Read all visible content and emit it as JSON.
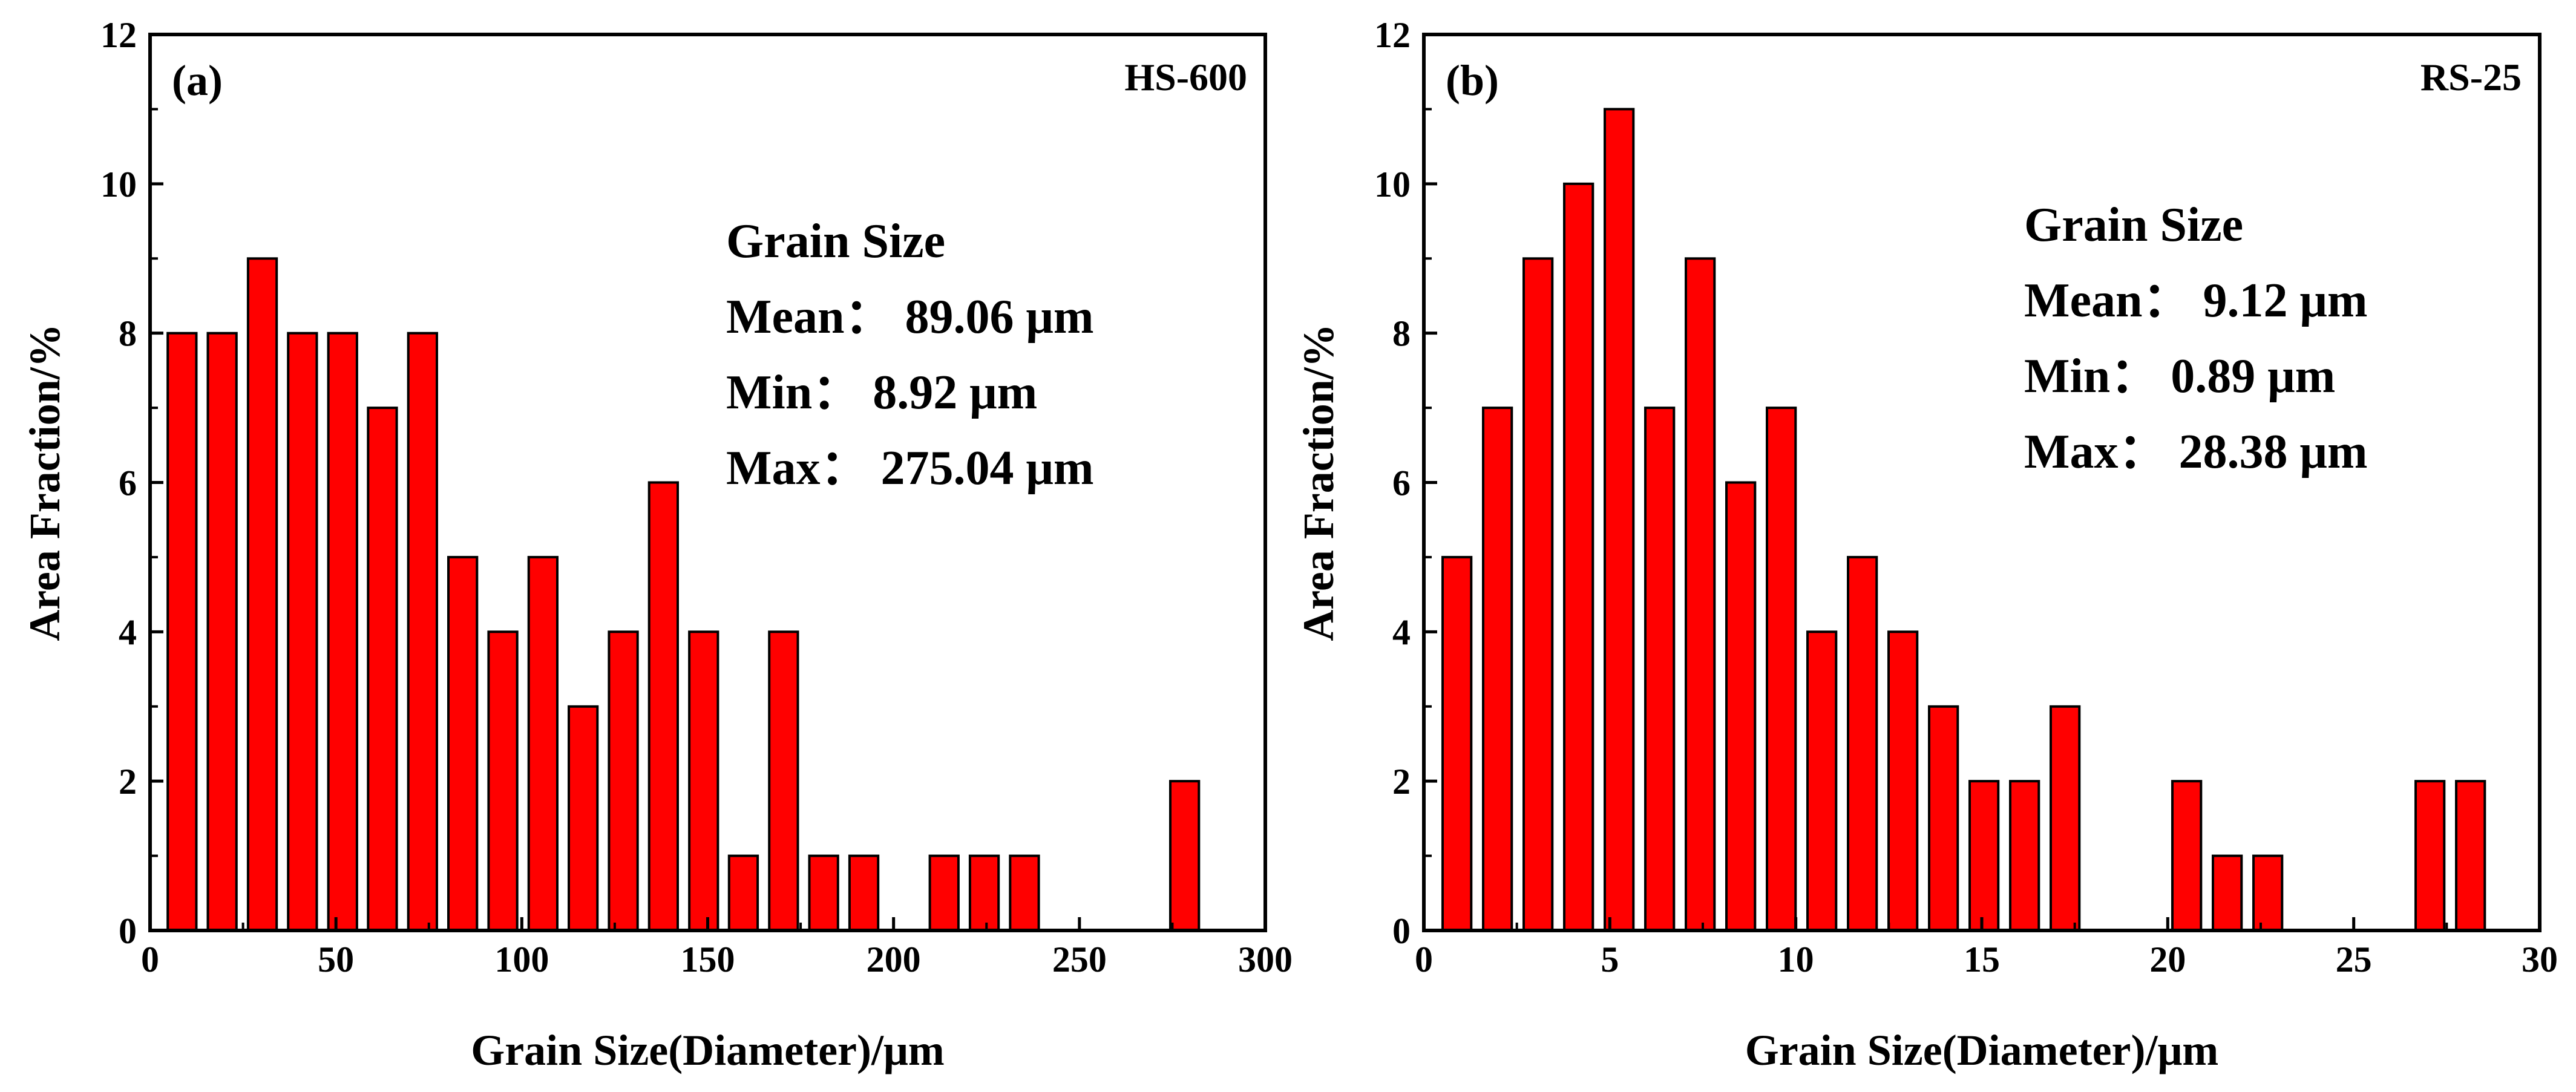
{
  "chart_data": [
    {
      "type": "bar",
      "panel_label": "(a)",
      "sample": "HS-600",
      "xlabel": "Grain Size(Diameter)/μm",
      "ylabel": "Area Fraction/%",
      "xlim": [
        0,
        300
      ],
      "ylim": [
        0,
        12
      ],
      "xticks": [
        "0",
        "50",
        "100",
        "150",
        "200",
        "250",
        "300"
      ],
      "yticks": [
        "0",
        "2",
        "4",
        "6",
        "8",
        "10",
        "12"
      ],
      "bar_width": 7.7,
      "bars": [
        {
          "x": 8.6,
          "value": 8
        },
        {
          "x": 19.4,
          "value": 8
        },
        {
          "x": 30.2,
          "value": 9
        },
        {
          "x": 41.0,
          "value": 8
        },
        {
          "x": 51.8,
          "value": 8
        },
        {
          "x": 62.5,
          "value": 7
        },
        {
          "x": 73.3,
          "value": 8
        },
        {
          "x": 84.1,
          "value": 5
        },
        {
          "x": 94.9,
          "value": 4
        },
        {
          "x": 105.7,
          "value": 5
        },
        {
          "x": 116.5,
          "value": 3
        },
        {
          "x": 127.3,
          "value": 4
        },
        {
          "x": 138.1,
          "value": 6
        },
        {
          "x": 148.9,
          "value": 4
        },
        {
          "x": 159.6,
          "value": 1
        },
        {
          "x": 170.4,
          "value": 4
        },
        {
          "x": 181.2,
          "value": 1
        },
        {
          "x": 192.0,
          "value": 1
        },
        {
          "x": 213.6,
          "value": 1
        },
        {
          "x": 224.4,
          "value": 1
        },
        {
          "x": 235.2,
          "value": 1
        },
        {
          "x": 278.3,
          "value": 2
        }
      ],
      "stats": {
        "title": "Grain Size",
        "mean": "Mean：  89.06 μm",
        "min": "Min：  8.92 μm",
        "max": "Max：  275.04 μm"
      }
    },
    {
      "type": "bar",
      "panel_label": "(b)",
      "sample": "RS-25",
      "xlabel": "Grain Size(Diameter)/μm",
      "ylabel": "Area Fraction/%",
      "xlim": [
        0,
        30
      ],
      "ylim": [
        0,
        12
      ],
      "xticks": [
        "0",
        "5",
        "10",
        "15",
        "20",
        "25",
        "30"
      ],
      "yticks": [
        "0",
        "2",
        "4",
        "6",
        "8",
        "10",
        "12"
      ],
      "bar_width": 0.77,
      "bars": [
        {
          "x": 0.89,
          "value": 5
        },
        {
          "x": 1.98,
          "value": 7
        },
        {
          "x": 3.07,
          "value": 9
        },
        {
          "x": 4.16,
          "value": 10
        },
        {
          "x": 5.25,
          "value": 11
        },
        {
          "x": 6.34,
          "value": 7
        },
        {
          "x": 7.43,
          "value": 9
        },
        {
          "x": 8.52,
          "value": 6
        },
        {
          "x": 9.61,
          "value": 7
        },
        {
          "x": 10.7,
          "value": 4
        },
        {
          "x": 11.79,
          "value": 5
        },
        {
          "x": 12.88,
          "value": 4
        },
        {
          "x": 13.97,
          "value": 3
        },
        {
          "x": 15.06,
          "value": 2
        },
        {
          "x": 16.15,
          "value": 2
        },
        {
          "x": 17.24,
          "value": 3
        },
        {
          "x": 20.51,
          "value": 2
        },
        {
          "x": 21.6,
          "value": 1
        },
        {
          "x": 22.69,
          "value": 1
        },
        {
          "x": 27.05,
          "value": 2
        },
        {
          "x": 28.14,
          "value": 2
        }
      ],
      "stats": {
        "title": "Grain Size",
        "mean": "Mean：  9.12 μm",
        "min": "Min：  0.89 μm",
        "max": "Max：  28.38 μm"
      }
    }
  ],
  "colors": {
    "bar_fill": "#ff0000",
    "bar_stroke": "#000000",
    "axis": "#000000",
    "background": "#ffffff"
  }
}
